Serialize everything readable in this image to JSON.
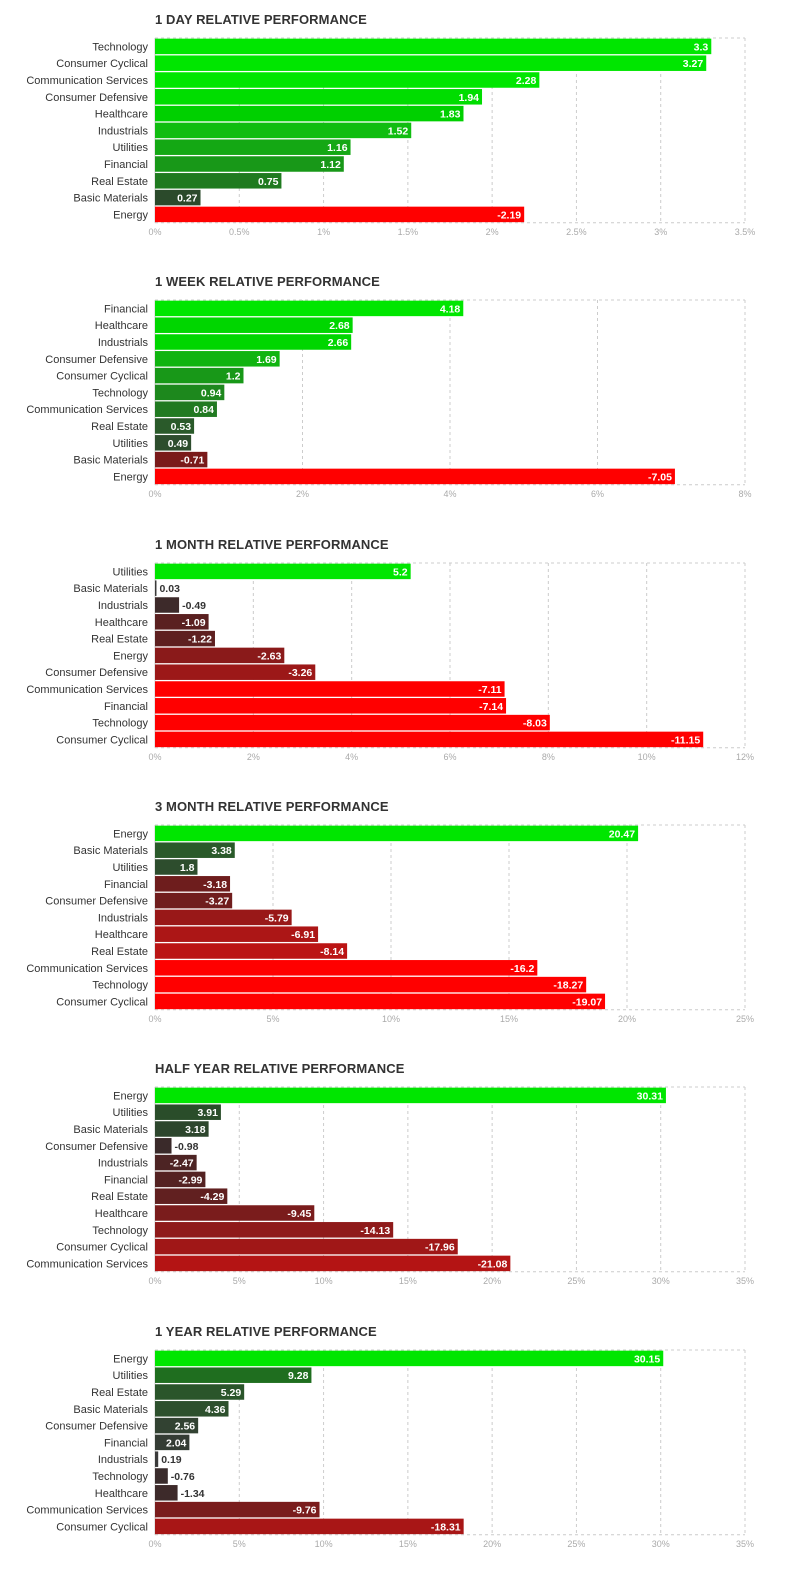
{
  "chart_data": [
    {
      "type": "bar",
      "title": "1 DAY RELATIVE PERFORMANCE",
      "categories": [
        "Technology",
        "Consumer Cyclical",
        "Communication Services",
        "Consumer Defensive",
        "Healthcare",
        "Industrials",
        "Utilities",
        "Financial",
        "Real Estate",
        "Basic Materials",
        "Energy"
      ],
      "values": [
        3.3,
        3.27,
        2.28,
        1.94,
        1.83,
        1.52,
        1.16,
        1.12,
        0.75,
        0.27,
        -2.19
      ],
      "value_labels": [
        "3.3",
        "3.27",
        "2.28",
        "1.94",
        "1.83",
        "1.52",
        "1.16",
        "1.12",
        "0.75",
        "0.27",
        "-2.19"
      ],
      "bar_colors": [
        "#00e600",
        "#00e600",
        "#00e600",
        "#00dd00",
        "#00d000",
        "#10bd10",
        "#14a814",
        "#189818",
        "#1f7a1f",
        "#2b4a2b",
        "#ff0000"
      ],
      "xticks": [
        0,
        0.5,
        1,
        1.5,
        2,
        2.5,
        3,
        3.5
      ],
      "xtick_labels": [
        "0%",
        "0.5%",
        "1%",
        "1.5%",
        "2%",
        "2.5%",
        "3%",
        "3.5%"
      ],
      "xlim": [
        0,
        3.5
      ]
    },
    {
      "type": "bar",
      "title": "1 WEEK RELATIVE PERFORMANCE",
      "categories": [
        "Financial",
        "Healthcare",
        "Industrials",
        "Consumer Defensive",
        "Consumer Cyclical",
        "Technology",
        "Communication Services",
        "Real Estate",
        "Utilities",
        "Basic Materials",
        "Energy"
      ],
      "values": [
        4.18,
        2.68,
        2.66,
        1.69,
        1.2,
        0.94,
        0.84,
        0.53,
        0.49,
        -0.71,
        -7.05
      ],
      "value_labels": [
        "4.18",
        "2.68",
        "2.66",
        "1.69",
        "1.2",
        "0.94",
        "0.84",
        "0.53",
        "0.49",
        "-0.71",
        "-7.05"
      ],
      "bar_colors": [
        "#00e600",
        "#00d600",
        "#00d600",
        "#10b410",
        "#189818",
        "#1d881d",
        "#217a21",
        "#2a5a2a",
        "#2d4d2d",
        "#7a1a1a",
        "#ff0000"
      ],
      "xticks": [
        0,
        2,
        4,
        6,
        8
      ],
      "xtick_labels": [
        "0%",
        "2%",
        "4%",
        "6%",
        "8%"
      ],
      "xlim": [
        0,
        8
      ]
    },
    {
      "type": "bar",
      "title": "1 MONTH RELATIVE PERFORMANCE",
      "categories": [
        "Utilities",
        "Basic Materials",
        "Industrials",
        "Healthcare",
        "Real Estate",
        "Energy",
        "Consumer Defensive",
        "Communication Services",
        "Financial",
        "Technology",
        "Consumer Cyclical"
      ],
      "values": [
        5.2,
        0.03,
        -0.49,
        -1.09,
        -1.22,
        -2.63,
        -3.26,
        -7.11,
        -7.14,
        -8.03,
        -11.15
      ],
      "value_labels": [
        "5.2",
        "0.03",
        "-0.49",
        "-1.09",
        "-1.22",
        "-2.63",
        "-3.26",
        "-7.11",
        "-7.14",
        "-8.03",
        "-11.15"
      ],
      "bar_colors": [
        "#00e600",
        "#3a3a3a",
        "#3d2a2a",
        "#5a2020",
        "#5e2020",
        "#8a1a1a",
        "#9c1818",
        "#ff0000",
        "#ff0000",
        "#ff0000",
        "#ff0000"
      ],
      "xticks": [
        0,
        2,
        4,
        6,
        8,
        10,
        12
      ],
      "xtick_labels": [
        "0%",
        "2%",
        "4%",
        "6%",
        "8%",
        "10%",
        "12%"
      ],
      "xlim": [
        0,
        12
      ]
    },
    {
      "type": "bar",
      "title": "3 MONTH RELATIVE PERFORMANCE",
      "categories": [
        "Energy",
        "Basic Materials",
        "Utilities",
        "Financial",
        "Consumer Defensive",
        "Industrials",
        "Healthcare",
        "Real Estate",
        "Communication Services",
        "Technology",
        "Consumer Cyclical"
      ],
      "values": [
        20.47,
        3.38,
        1.8,
        -3.18,
        -3.27,
        -5.79,
        -6.91,
        -8.14,
        -16.2,
        -18.27,
        -19.07
      ],
      "value_labels": [
        "20.47",
        "3.38",
        "1.8",
        "-3.18",
        "-3.27",
        "-5.79",
        "-6.91",
        "-8.14",
        "-16.2",
        "-18.27",
        "-19.07"
      ],
      "bar_colors": [
        "#00e600",
        "#2a5a2a",
        "#2d4d2d",
        "#6e1d1d",
        "#701d1d",
        "#991818",
        "#ac1616",
        "#bb1414",
        "#ff0000",
        "#ff0000",
        "#ff0000"
      ],
      "xticks": [
        0,
        5,
        10,
        15,
        20,
        25
      ],
      "xtick_labels": [
        "0%",
        "5%",
        "10%",
        "15%",
        "20%",
        "25%"
      ],
      "xlim": [
        0,
        25
      ]
    },
    {
      "type": "bar",
      "title": "HALF YEAR RELATIVE PERFORMANCE",
      "categories": [
        "Energy",
        "Utilities",
        "Basic Materials",
        "Consumer Defensive",
        "Industrials",
        "Financial",
        "Real Estate",
        "Healthcare",
        "Technology",
        "Consumer Cyclical",
        "Communication Services"
      ],
      "values": [
        30.31,
        3.91,
        3.18,
        -0.98,
        -2.47,
        -2.99,
        -4.29,
        -9.45,
        -14.13,
        -17.96,
        -21.08
      ],
      "value_labels": [
        "30.31",
        "3.91",
        "3.18",
        "-0.98",
        "-2.47",
        "-2.99",
        "-4.29",
        "-9.45",
        "-14.13",
        "-17.96",
        "-21.08"
      ],
      "bar_colors": [
        "#00e600",
        "#2a4d2a",
        "#2d462d",
        "#3a2a2a",
        "#4d2424",
        "#542222",
        "#612020",
        "#7a1c1c",
        "#8f1a1a",
        "#a01717",
        "#b41414"
      ],
      "xticks": [
        0,
        5,
        10,
        15,
        20,
        25,
        30,
        35
      ],
      "xtick_labels": [
        "0%",
        "5%",
        "10%",
        "15%",
        "20%",
        "25%",
        "30%",
        "35%"
      ],
      "xlim": [
        0,
        35
      ]
    },
    {
      "type": "bar",
      "title": "1 YEAR RELATIVE PERFORMANCE",
      "categories": [
        "Energy",
        "Utilities",
        "Real Estate",
        "Basic Materials",
        "Consumer Defensive",
        "Financial",
        "Industrials",
        "Technology",
        "Healthcare",
        "Communication Services",
        "Consumer Cyclical"
      ],
      "values": [
        30.15,
        9.28,
        5.29,
        4.36,
        2.56,
        2.04,
        0.19,
        -0.76,
        -1.34,
        -9.76,
        -18.31
      ],
      "value_labels": [
        "30.15",
        "9.28",
        "5.29",
        "4.36",
        "2.56",
        "2.04",
        "0.19",
        "-0.76",
        "-1.34",
        "-9.76",
        "-18.31"
      ],
      "bar_colors": [
        "#00e600",
        "#1f6e1f",
        "#2a552a",
        "#2d502d",
        "#324232",
        "#343c34",
        "#3a3a3a",
        "#3a2c2c",
        "#3d2a2a",
        "#7a1c1c",
        "#a81616"
      ],
      "xticks": [
        0,
        5,
        10,
        15,
        20,
        25,
        30,
        35
      ],
      "xtick_labels": [
        "0%",
        "5%",
        "10%",
        "15%",
        "20%",
        "25%",
        "30%",
        "35%"
      ],
      "xlim": [
        0,
        35
      ]
    }
  ],
  "colors": {
    "positive_bright": "#00e600",
    "negative_bright": "#ff0000",
    "grid": "#cccccc",
    "tick_text": "#aaaaaa",
    "label_text": "#333333"
  }
}
